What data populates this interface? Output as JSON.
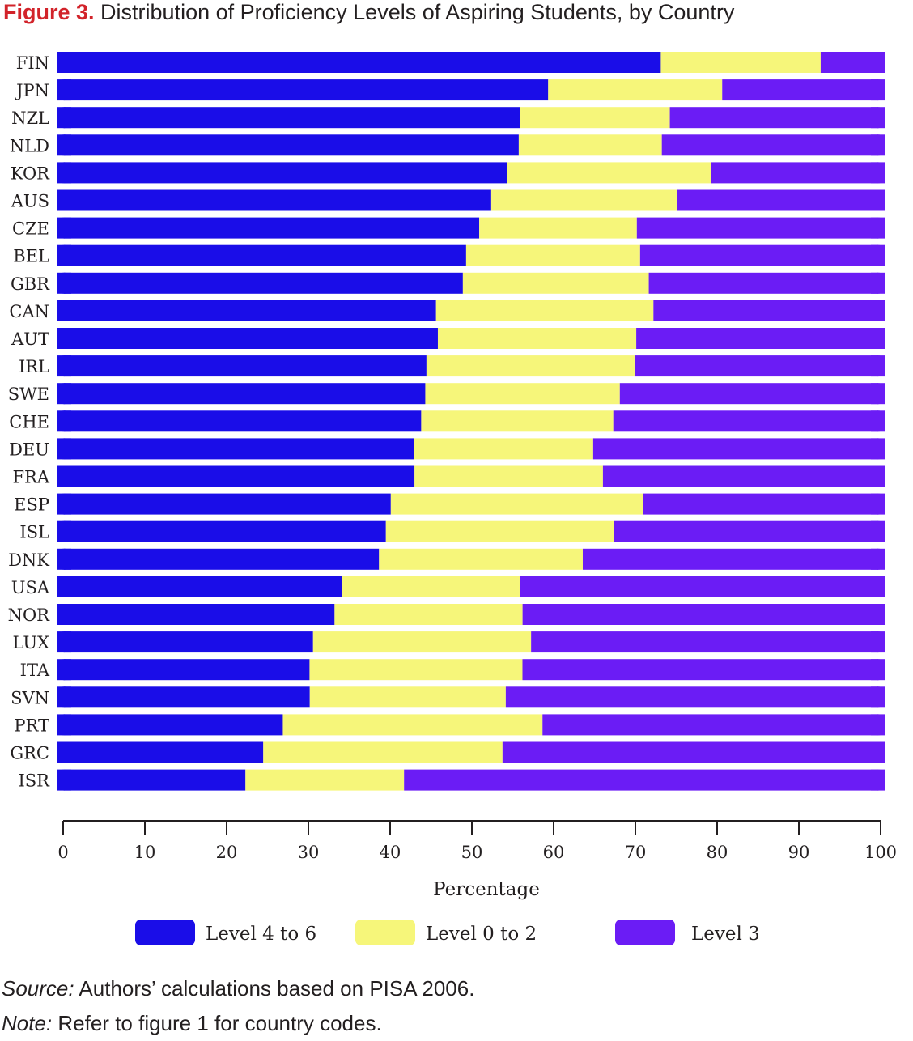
{
  "title": {
    "prefix": "Figure 3.",
    "text": "Distribution of Proficiency Levels of Aspiring Students, by Country"
  },
  "chart_data": {
    "type": "bar",
    "orientation": "horizontal",
    "stacked": true,
    "categories": [
      "FIN",
      "JPN",
      "NZL",
      "NLD",
      "KOR",
      "AUS",
      "CZE",
      "BEL",
      "GBR",
      "CAN",
      "AUT",
      "IRL",
      "SWE",
      "CHE",
      "DEU",
      "FRA",
      "ESP",
      "ISL",
      "DNK",
      "USA",
      "NOR",
      "LUX",
      "ITA",
      "SVN",
      "PRT",
      "GRC",
      "ISR"
    ],
    "series": [
      {
        "name": "Level 4 to 6",
        "color": "#1a0de8",
        "values": [
          71.8,
          59.6,
          56.3,
          56.2,
          54.7,
          52.8,
          51.5,
          49.9,
          49.6,
          46.6,
          46.5,
          45.2,
          45.1,
          44.6,
          43.9,
          43.7,
          40.8,
          40.2,
          39.4,
          34.9,
          34.0,
          31.4,
          31.0,
          31.0,
          27.7,
          25.3,
          23.1
        ]
      },
      {
        "name": "Level 0 to 2",
        "color": "#f6f67a",
        "values": [
          19.0,
          21.1,
          18.2,
          17.4,
          24.7,
          22.6,
          19.2,
          21.2,
          22.7,
          26.7,
          24.2,
          25.5,
          23.8,
          23.5,
          22.0,
          23.0,
          30.8,
          27.8,
          24.9,
          21.8,
          23.0,
          26.7,
          26.1,
          24.0,
          31.8,
          29.3,
          19.4
        ]
      },
      {
        "name": "Level 3",
        "color": "#6b1cf5",
        "values": [
          7.7,
          19.8,
          26.2,
          27.2,
          21.2,
          25.3,
          30.3,
          29.9,
          28.9,
          28.5,
          30.4,
          30.6,
          32.5,
          33.3,
          35.9,
          34.5,
          29.6,
          33.2,
          37.0,
          44.8,
          44.4,
          43.4,
          44.5,
          46.5,
          42.0,
          46.9,
          58.9
        ]
      }
    ],
    "xlabel": "Percentage",
    "xlim": [
      0,
      101
    ],
    "xticks": [
      0,
      10,
      20,
      30,
      40,
      50,
      60,
      70,
      80,
      90,
      100
    ],
    "legend_position": "bottom",
    "grid": false
  },
  "notes": {
    "source_label": "Source:",
    "source_text": "Authors’ calculations based on PISA 2006.",
    "note_label": "Note:",
    "note_text": "Refer to figure 1 for country codes."
  }
}
